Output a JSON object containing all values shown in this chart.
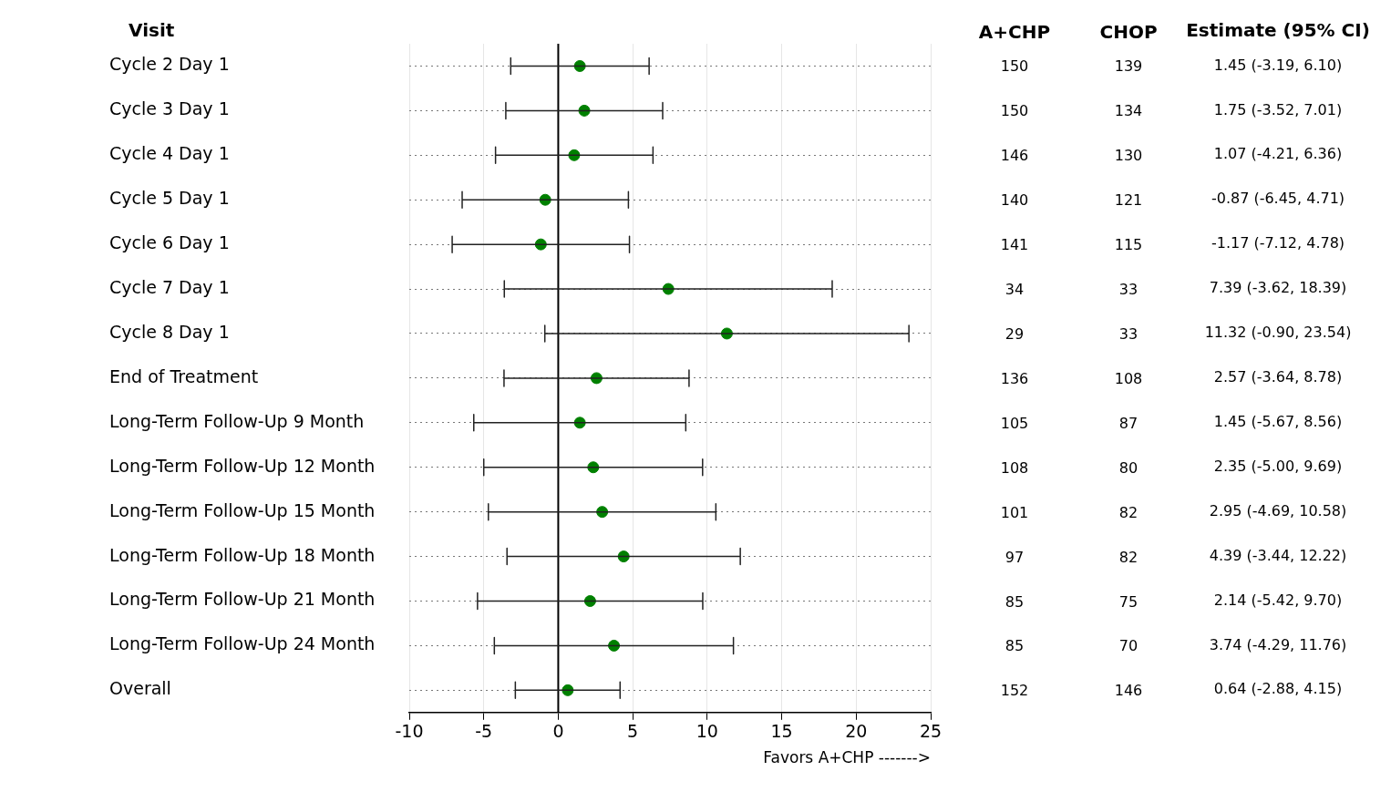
{
  "chart_data": [
    {
      "type": "scatter",
      "orientation": "horizontal",
      "ylabel": "Visit",
      "xlabel": "Favors A+CHP ------->",
      "categories": [
        "Cycle 2 Day 1",
        "Cycle 3 Day 1",
        "Cycle 4 Day 1",
        "Cycle 5 Day 1",
        "Cycle 6 Day 1",
        "Cycle 7 Day 1",
        "Cycle 8 Day 1",
        "End of Treatment",
        "Long-Term Follow-Up 9 Month",
        "Long-Term Follow-Up 12 Month",
        "Long-Term Follow-Up 15 Month",
        "Long-Term Follow-Up 18 Month",
        "Long-Term Follow-Up 21 Month",
        "Long-Term Follow-Up 24 Month",
        "Overall"
      ],
      "values": [
        1.45,
        1.75,
        1.07,
        -0.87,
        -1.17,
        7.39,
        11.32,
        2.57,
        1.45,
        2.35,
        2.95,
        4.39,
        2.14,
        3.74,
        0.64
      ],
      "errors": [
        [
          -3.19,
          6.1
        ],
        [
          -3.52,
          7.01
        ],
        [
          -4.21,
          6.36
        ],
        [
          -6.45,
          4.71
        ],
        [
          -7.12,
          4.78
        ],
        [
          -3.62,
          18.39
        ],
        [
          -0.9,
          23.54
        ],
        [
          -3.64,
          8.78
        ],
        [
          -5.67,
          8.56
        ],
        [
          -5.0,
          9.69
        ],
        [
          -4.69,
          10.58
        ],
        [
          -3.44,
          12.22
        ],
        [
          -5.42,
          9.7
        ],
        [
          -4.29,
          11.76
        ],
        [
          -2.88,
          4.15
        ]
      ],
      "value_labels": [
        "1.45 (-3.19, 6.10)",
        "1.75 (-3.52, 7.01)",
        "1.07 (-4.21, 6.36)",
        "-0.87 (-6.45, 4.71)",
        "-1.17 (-7.12, 4.78)",
        "7.39 (-3.62, 18.39)",
        "11.32 (-0.90, 23.54)",
        "2.57 (-3.64, 8.78)",
        "1.45 (-5.67, 8.56)",
        "2.35 (-5.00, 9.69)",
        "2.95 (-4.69, 10.58)",
        "4.39 (-3.44, 12.22)",
        "2.14 (-5.42, 9.70)",
        "3.74 (-4.29, 11.76)",
        "0.64 (-2.88, 4.15)"
      ],
      "annotations": [
        "Estimate (95% CI)"
      ],
      "color": "#008000",
      "marker": "circle",
      "xlim": [
        -10,
        25
      ],
      "xticks": [
        -10,
        -5,
        0,
        5,
        10,
        15,
        20,
        25
      ],
      "ref_lines": [
        {
          "axis": "x",
          "value": 0,
          "color": "#000000"
        }
      ],
      "grid": true,
      "legend": false
    },
    {
      "type": "other",
      "annotations": [
        "A+CHP",
        "CHOP",
        "150",
        "139",
        "150",
        "134",
        "146",
        "130",
        "140",
        "121",
        "141",
        "115",
        "34",
        "33",
        "29",
        "33",
        "136",
        "108",
        "105",
        "87",
        "108",
        "80",
        "101",
        "82",
        "97",
        "82",
        "85",
        "75",
        "85",
        "70",
        "152",
        "146"
      ]
    }
  ]
}
